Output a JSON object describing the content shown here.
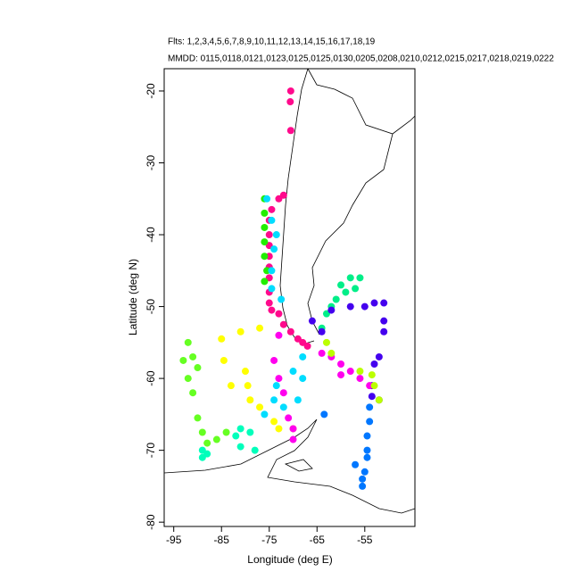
{
  "chart_data": {
    "type": "scatter",
    "title": "Flts: 1,2,3,4,5,6,7,8,9,10,11,12,13,14,15,16,17,18,19",
    "subtitle": "MMDD: 0115,0118,0121,0123,0125,0125,0130,0205,0208,0210,0212,0215,0217,0218,0219,0222",
    "xlabel": "Longitude (deg E)",
    "ylabel": "Latitude (deg N)",
    "xlim": [
      -97,
      -44.5
    ],
    "ylim": [
      -80.6,
      -16.9
    ],
    "xticks": [
      -95,
      -85,
      -75,
      -65,
      -55
    ],
    "yticks": [
      -20,
      -30,
      -40,
      -50,
      -60,
      -70,
      -80
    ],
    "series": [
      {
        "color": "#ff0a8c",
        "x": [
          -70.5,
          -70.6,
          -70.5,
          -72,
          -73,
          -74.5,
          -75,
          -75,
          -75,
          -75,
          -75,
          -75,
          -75,
          -75,
          -74.5,
          -73,
          -72,
          -70.5,
          -69,
          -68,
          -67
        ],
        "values": [
          -20,
          -21.5,
          -25.5,
          -34.5,
          -35,
          -36.5,
          -38,
          -40,
          -41.5,
          -43,
          -44.5,
          -46,
          -48,
          -49.5,
          -50.5,
          -51,
          -52.5,
          -53.5,
          -54.5,
          -55,
          -55.5
        ]
      },
      {
        "color": "#22ee00",
        "x": [
          -76,
          -76,
          -76,
          -76,
          -76,
          -75.5,
          -76
        ],
        "values": [
          -35,
          -37,
          -39,
          -41,
          -43,
          -45,
          -46.5
        ]
      },
      {
        "color": "#00ddff",
        "x": [
          -75.5,
          -74.5,
          -73.5,
          -74,
          -74.5,
          -74.5,
          -72.5,
          -68,
          -70,
          -73.5,
          -74,
          -76,
          -72,
          -69,
          -68
        ],
        "values": [
          -35,
          -38,
          -40,
          -42,
          -45,
          -47.5,
          -49,
          -57,
          -59,
          -61,
          -63,
          -65,
          -64,
          -63,
          -60
        ]
      },
      {
        "color": "#00ee88",
        "x": [
          -60,
          -58,
          -56,
          -57,
          -59,
          -61,
          -62,
          -63,
          -64
        ],
        "values": [
          -47,
          -46,
          -46,
          -47.5,
          -48,
          -49,
          -50,
          -51,
          -53
        ]
      },
      {
        "color": "#4400ee",
        "x": [
          -66,
          -64,
          -62,
          -58,
          -55,
          -53,
          -51,
          -51,
          -51,
          -52,
          -53,
          -53.5,
          -53.5,
          -52
        ],
        "values": [
          -52,
          -53.5,
          -50.5,
          -50,
          -50,
          -49.5,
          -49.5,
          -52,
          -53.5,
          -57,
          -58,
          -61,
          -62.5,
          -63
        ]
      },
      {
        "color": "#ffff00",
        "x": [
          -85,
          -81,
          -77,
          -80,
          -79.5,
          -79,
          -77,
          -74,
          -73,
          -84.5,
          -83,
          -70
        ],
        "values": [
          -54.5,
          -53.5,
          -53,
          -59,
          -61,
          -63,
          -64,
          -66,
          -67,
          -57.5,
          -61,
          -67
        ]
      },
      {
        "color": "#66ff22",
        "x": [
          -92,
          -93,
          -92,
          -91,
          -90,
          -89,
          -88,
          -86,
          -84,
          -91,
          -90
        ],
        "values": [
          -55,
          -57.5,
          -60,
          -62,
          -65.5,
          -67.5,
          -69,
          -68.5,
          -67.5,
          -57,
          -58.5
        ]
      },
      {
        "color": "#ff00ee",
        "x": [
          -64,
          -62,
          -60,
          -58,
          -56,
          -54,
          -74,
          -73,
          -72,
          -71,
          -70,
          -70,
          -73,
          -60
        ],
        "values": [
          -56.5,
          -57,
          -58,
          -59,
          -60,
          -61,
          -57.5,
          -60,
          -62,
          -65.5,
          -67,
          -68.5,
          -54,
          -59.5
        ]
      },
      {
        "color": "#0077ff",
        "x": [
          -54,
          -54,
          -54.5,
          -54.5,
          -54.5,
          -55,
          -55.5,
          -55.5,
          -57,
          -63.5
        ],
        "values": [
          -64,
          -66,
          -68,
          -70,
          -71,
          -73,
          -74,
          -75,
          -72,
          -65
        ]
      },
      {
        "color": "#bbff00",
        "x": [
          -63,
          -62,
          -56,
          -53,
          -52,
          -53.5
        ],
        "values": [
          -55,
          -56.5,
          -59,
          -61,
          -63,
          -59.5
        ]
      },
      {
        "color": "#00ffbb",
        "x": [
          -89,
          -88,
          -89,
          -81,
          -78,
          -79,
          -81,
          -82
        ],
        "values": [
          -70,
          -70.5,
          -71,
          -69.5,
          -70,
          -67.5,
          -67,
          -68
        ]
      }
    ]
  }
}
